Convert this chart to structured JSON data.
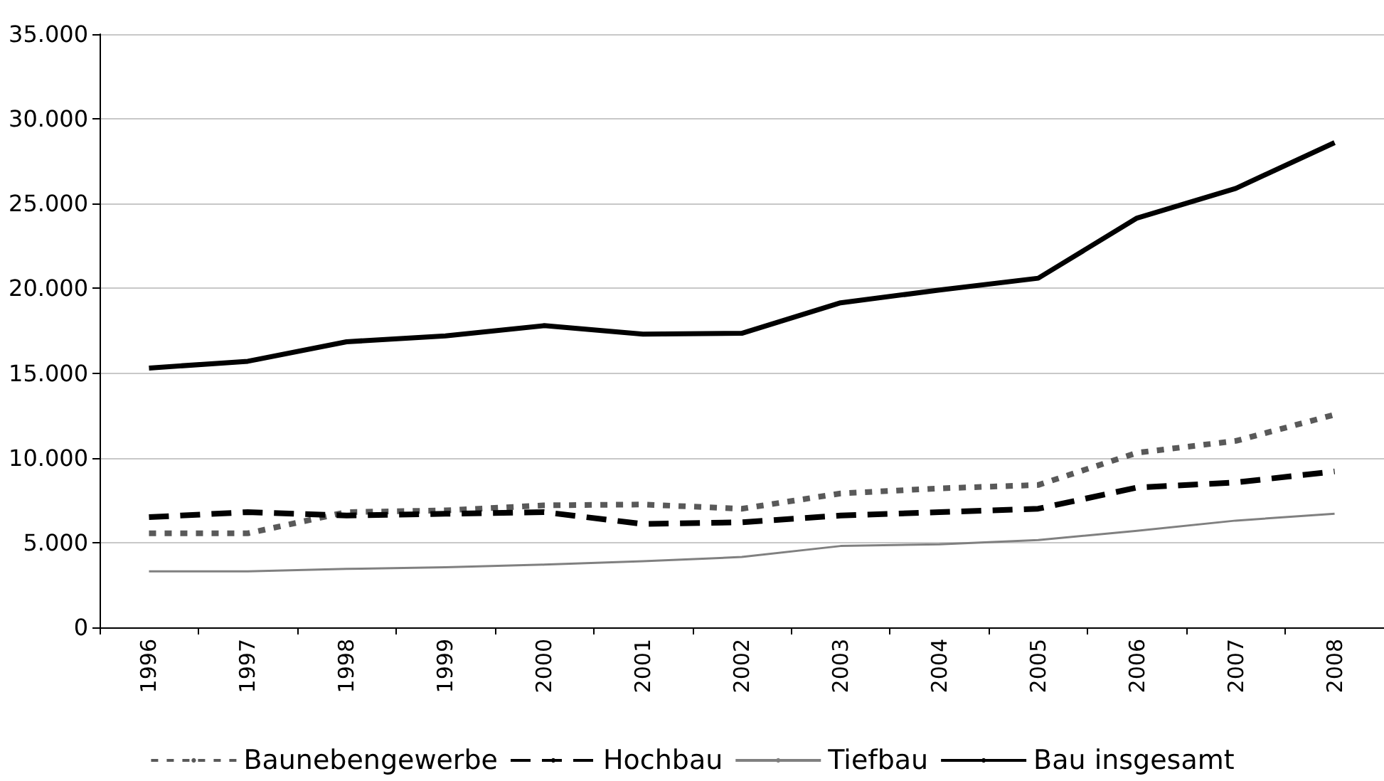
{
  "chart_data": {
    "type": "line",
    "categories": [
      "1996",
      "1997",
      "1998",
      "1999",
      "2000",
      "2001",
      "2002",
      "2003",
      "2004",
      "2005",
      "2006",
      "2007",
      "2008"
    ],
    "series": [
      {
        "name": "Baunebengewerbe",
        "color": "#595959",
        "line_style": "dotted",
        "values": [
          5550,
          5550,
          6800,
          6900,
          7200,
          7250,
          7000,
          7900,
          8200,
          8400,
          10300,
          11000,
          12550
        ]
      },
      {
        "name": "Hochbau",
        "color": "#000000",
        "line_style": "dashed",
        "values": [
          6500,
          6800,
          6600,
          6700,
          6800,
          6100,
          6200,
          6600,
          6800,
          7000,
          8250,
          8550,
          9200
        ]
      },
      {
        "name": "Tiefbau",
        "color": "#808080",
        "line_style": "solid",
        "values": [
          3300,
          3300,
          3450,
          3550,
          3700,
          3900,
          4150,
          4800,
          4900,
          5150,
          5700,
          6300,
          6700
        ]
      },
      {
        "name": "Bau insgesamt",
        "color": "#000000",
        "line_style": "solid",
        "values": [
          15300,
          15700,
          16850,
          17200,
          17800,
          17300,
          17350,
          19150,
          19900,
          20600,
          24150,
          25900,
          28600
        ]
      }
    ],
    "ylim": [
      0,
      35000
    ],
    "yticks": [
      {
        "value": 0,
        "label": "0"
      },
      {
        "value": 5000,
        "label": "5.000"
      },
      {
        "value": 10000,
        "label": "10.000"
      },
      {
        "value": 15000,
        "label": "15.000"
      },
      {
        "value": 20000,
        "label": "20.000"
      },
      {
        "value": 25000,
        "label": "25.000"
      },
      {
        "value": 30000,
        "label": "30.000"
      },
      {
        "value": 35000,
        "label": "35.000"
      }
    ],
    "grid": "y",
    "legend": "bottom",
    "marker": "none"
  }
}
